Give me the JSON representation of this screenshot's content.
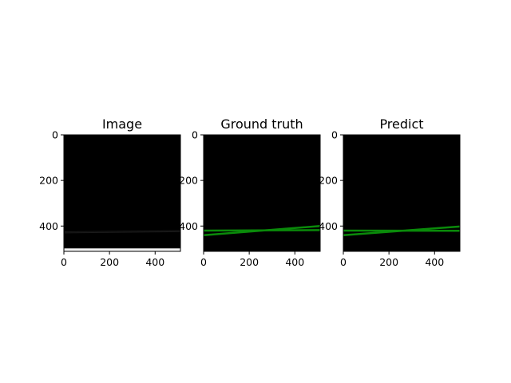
{
  "colors": {
    "background": "#ffffff",
    "panel": "#000000",
    "mask_line": "#0a8a0a",
    "image_line": "#1b1b1b",
    "bright_band": "#f2f2f2"
  },
  "chart_data": [
    {
      "type": "heatmap",
      "title": "Image",
      "xlim": [
        0,
        511
      ],
      "ylim": [
        511,
        0
      ],
      "xticks": [
        0,
        200,
        400
      ],
      "yticks": [
        0,
        200,
        400
      ],
      "features": {
        "bright_band_y": [
          498,
          511
        ],
        "faint_lines": [
          {
            "x": [
              0,
              511
            ],
            "y": [
              425,
              420
            ]
          },
          {
            "x": [
              0,
              511
            ],
            "y": [
              430,
              425
            ]
          }
        ]
      }
    },
    {
      "type": "heatmap",
      "title": "Ground truth",
      "xlim": [
        0,
        511
      ],
      "ylim": [
        511,
        0
      ],
      "xticks": [
        0,
        200,
        400
      ],
      "yticks": [
        0,
        200,
        400
      ],
      "series": [
        {
          "x": [
            0,
            511
          ],
          "y": [
            420,
            418
          ]
        },
        {
          "x": [
            0,
            511
          ],
          "y": [
            440,
            400
          ]
        }
      ]
    },
    {
      "type": "heatmap",
      "title": "Predict",
      "xlim": [
        0,
        511
      ],
      "ylim": [
        511,
        0
      ],
      "xticks": [
        0,
        200,
        400
      ],
      "yticks": [
        0,
        200,
        400
      ],
      "series": [
        {
          "x": [
            0,
            511
          ],
          "y": [
            420,
            421
          ]
        },
        {
          "x": [
            0,
            511
          ],
          "y": [
            440,
            402
          ]
        }
      ]
    }
  ]
}
